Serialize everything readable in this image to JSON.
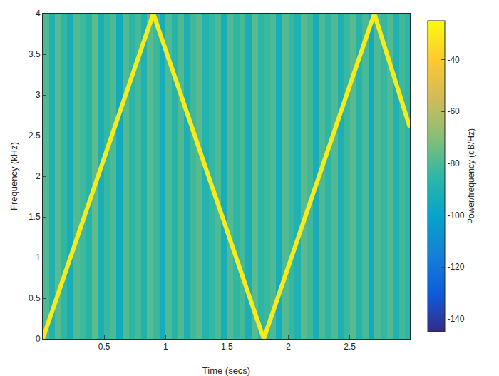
{
  "chart_data": {
    "type": "heatmap",
    "xlabel": "Time (secs)",
    "ylabel": "Frequency (kHz)",
    "xlim": [
      0,
      2.99
    ],
    "ylim": [
      0,
      4
    ],
    "xticks": [
      0.5,
      1,
      1.5,
      2,
      2.5
    ],
    "yticks": [
      0,
      0.5,
      1,
      1.5,
      2,
      2.5,
      3,
      3.5,
      4
    ],
    "grid": false,
    "color": "parula",
    "colorbar_label": "Power/frequency (dB/Hz)",
    "zlim": [
      -145,
      -25
    ],
    "zticks": [
      -40,
      -60,
      -80,
      -100,
      -120,
      -140
    ],
    "background": {
      "time": [
        0,
        0.05,
        0.1,
        0.15,
        0.2,
        0.25,
        0.3,
        0.35,
        0.4,
        0.45,
        0.5,
        0.55,
        0.6,
        0.65,
        0.7,
        0.75,
        0.8,
        0.85,
        0.9,
        0.95,
        1,
        1.05,
        1.1,
        1.15,
        1.2,
        1.25,
        1.3,
        1.35,
        1.4,
        1.45,
        1.5,
        1.55,
        1.6,
        1.65,
        1.7,
        1.75,
        1.8,
        1.85,
        1.9,
        1.95,
        2,
        2.05,
        2.1,
        2.15,
        2.2,
        2.25,
        2.3,
        2.35,
        2.4,
        2.45,
        2.5,
        2.55,
        2.6,
        2.65,
        2.7,
        2.75,
        2.8,
        2.85,
        2.9,
        2.95,
        3
      ],
      "frequency": [
        0,
        4
      ],
      "power": [
        -80,
        -90,
        -78,
        -85,
        -93,
        -79,
        -82,
        -88,
        -77,
        -92,
        -84,
        -80,
        -95,
        -79,
        -86,
        -81,
        -90,
        -78,
        -83,
        -94,
        -80,
        -87,
        -79,
        -91,
        -82,
        -78,
        -89,
        -84,
        -80,
        -93,
        -79,
        -85,
        -81,
        -92,
        -78,
        -86,
        -83,
        -80,
        -94,
        -79,
        -84,
        -90,
        -78,
        -82,
        -93,
        -80,
        -86,
        -79,
        -91,
        -83,
        -78,
        -88,
        -81,
        -95,
        -80,
        -84,
        -79,
        -90,
        -82,
        -86
      ]
    },
    "ridge": {
      "time": [
        0,
        0.9,
        1.8,
        2.7,
        2.99
      ],
      "frequency": [
        0,
        4,
        0,
        4,
        2.6
      ],
      "power": -30
    }
  }
}
